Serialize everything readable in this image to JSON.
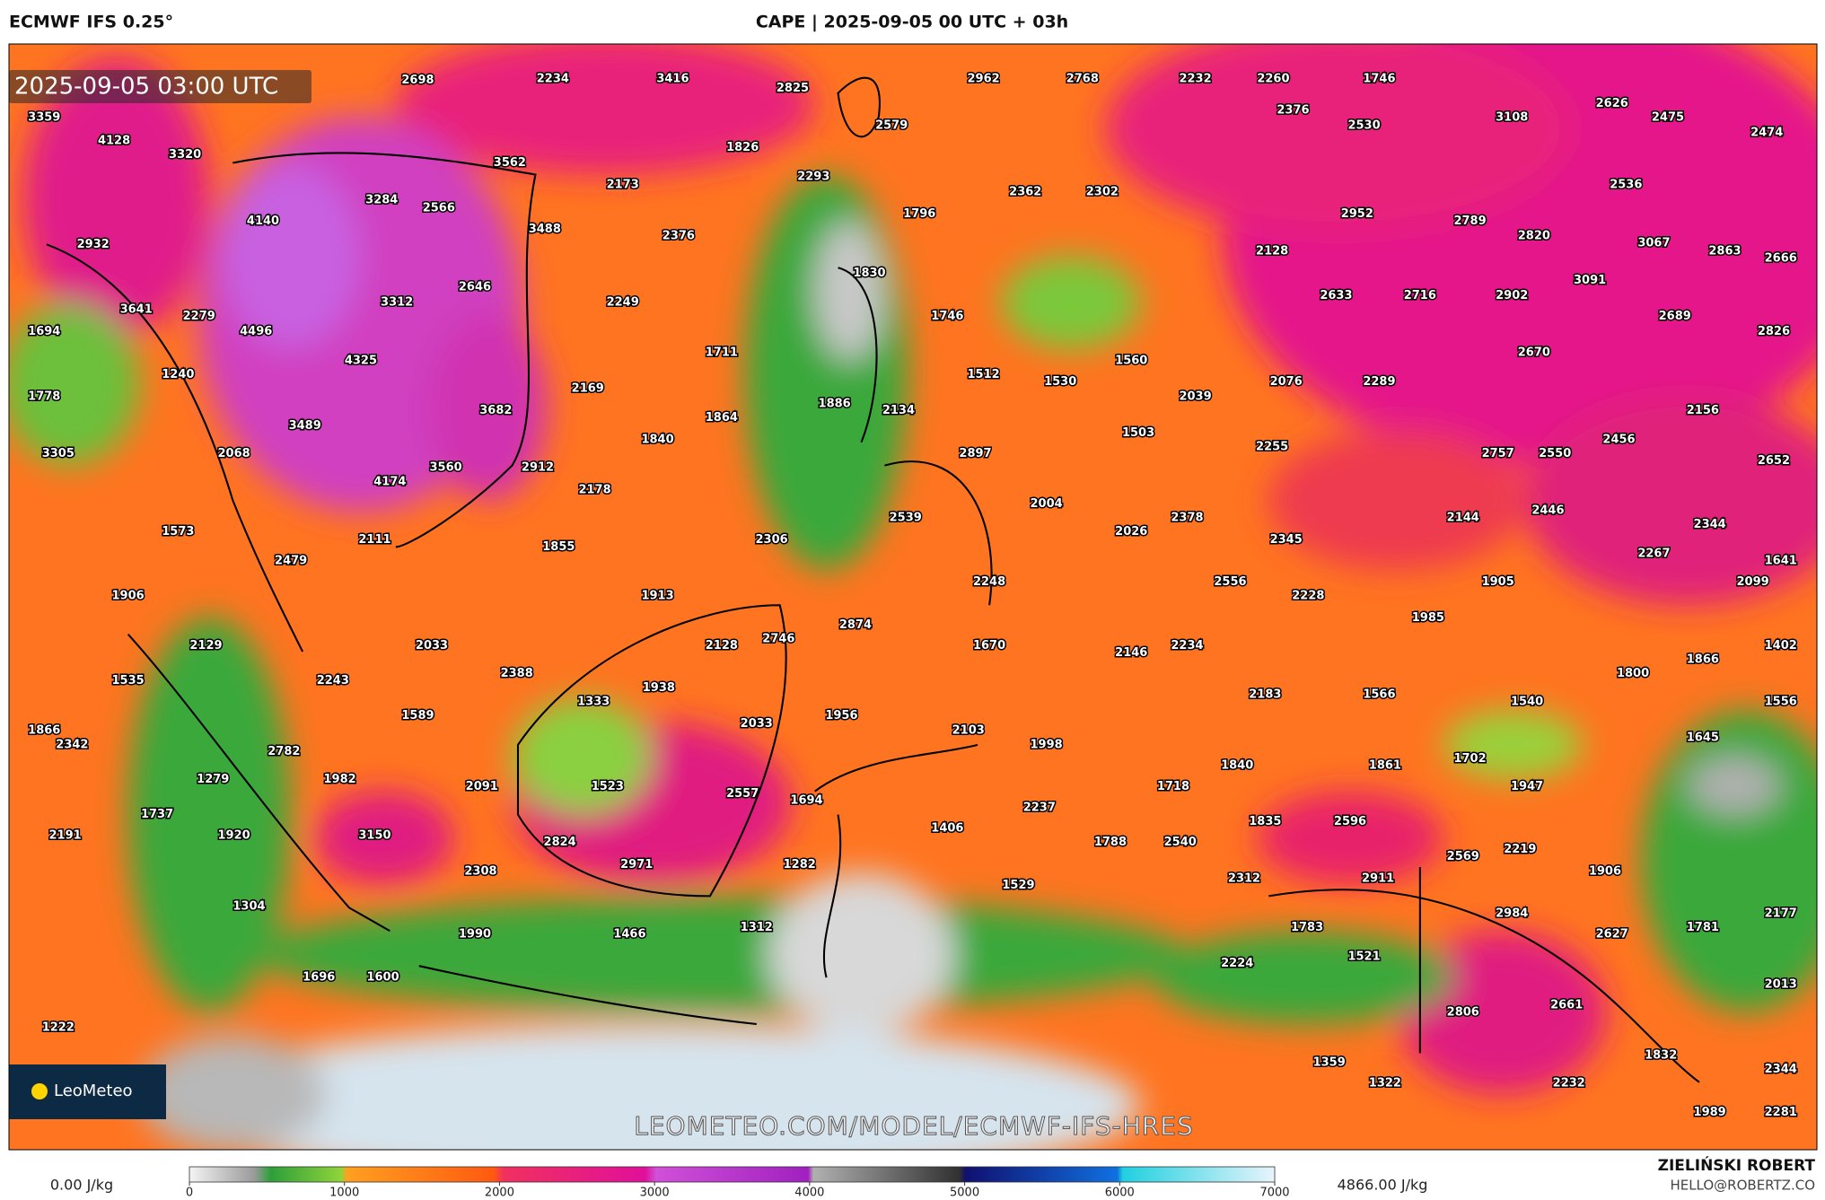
{
  "header": {
    "left": "ECMWF IFS 0.25°",
    "title": "CAPE | 2025-09-05 00 UTC + 03h"
  },
  "map": {
    "timestamp": "2025-09-05 03:00 UTC",
    "watermark": "LEOMETEO.COM/MODEL/ECMWF-IFS-HRES",
    "logo": "LeoMeteo",
    "points": [
      2698,
      2234,
      3416,
      2825,
      2962,
      2768,
      2232,
      2260,
      1746,
      3359,
      2579,
      2376,
      2530,
      3108,
      2626,
      2475,
      2474,
      4128,
      3320,
      1826,
      3562,
      2173,
      2293,
      3284,
      2566,
      2362,
      2302,
      2536,
      1796,
      2952,
      2789,
      2820,
      3067,
      2863,
      2666,
      4140,
      3488,
      2376,
      2932,
      2128,
      1830,
      3091,
      2646,
      2249,
      3312,
      2633,
      2716,
      2902,
      2689,
      3641,
      2279,
      1746,
      4496,
      1694,
      2826,
      1711,
      2670,
      4325,
      1560,
      1240,
      1512,
      1530,
      2076,
      2289,
      2169,
      2039,
      1778,
      1886,
      2134,
      3682,
      1864,
      2156,
      3489,
      1503,
      1840,
      2456,
      2255,
      3305,
      2068,
      2897,
      2757,
      2550,
      2652,
      3560,
      2912,
      4174,
      2178,
      2004,
      2378,
      2144,
      2446,
      2539,
      2344,
      1573,
      2111,
      2306,
      1855,
      2026,
      2345,
      2267,
      1641,
      2479,
      2556,
      2248,
      1905,
      2099,
      1906,
      1913,
      2228,
      1985,
      2874,
      2746,
      2128,
      2129,
      2033,
      1670,
      2146,
      2234,
      1402,
      1866,
      1800,
      2388,
      2243,
      1535,
      1938,
      2183,
      1566,
      1540,
      1556,
      1333,
      1589,
      1956,
      1866,
      2342,
      2033,
      2103,
      1998,
      1645,
      2782,
      1982,
      1840,
      1861,
      1702,
      1279,
      2091,
      1523,
      1718,
      1947,
      2557,
      1694,
      2237,
      1737,
      1835,
      2596,
      1406,
      3150,
      2824,
      1920,
      2191,
      1788,
      2540,
      2219,
      2569,
      2971,
      1282,
      2308,
      2312,
      2911,
      1906,
      1529,
      1304,
      2984,
      2177,
      1312,
      1466,
      1990,
      1783,
      1781,
      2627,
      2224,
      1521,
      1696,
      1600,
      2013,
      2661,
      2806,
      1222,
      1832,
      1359,
      2344,
      1322,
      2232,
      1989,
      2281
    ]
  },
  "colorbar": {
    "min_label": "0.00 J/kg",
    "max_label": "4866.00 J/kg",
    "lim": [
      0,
      7000
    ],
    "ticks": [
      0,
      1000,
      2000,
      3000,
      4000,
      5000,
      6000,
      7000
    ]
  },
  "footer": {
    "author": "ZIELIŃSKI ROBERT",
    "email": "HELLO@ROBERTZ.CO"
  }
}
